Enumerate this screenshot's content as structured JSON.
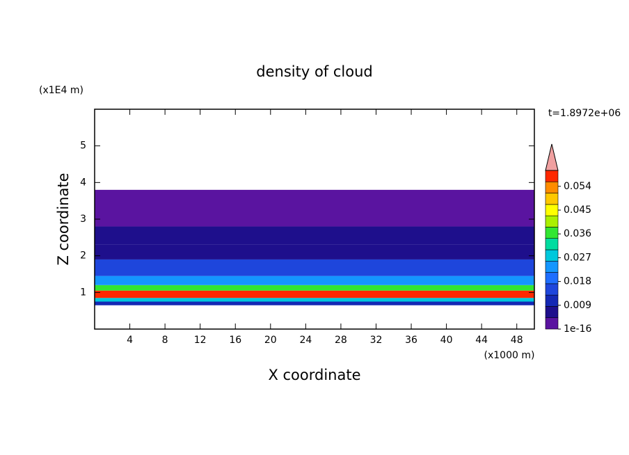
{
  "chart_data": {
    "type": "contour",
    "title": "density of cloud",
    "x_label": "X coordinate",
    "y_label": "Z coordinate",
    "x_unit": "(x1000 m)",
    "y_unit": "(x1E4 m)",
    "time_label": "t=1.8972e+06",
    "xlim": [
      0,
      50
    ],
    "xticks": [
      4,
      8,
      12,
      16,
      20,
      24,
      28,
      32,
      36,
      40,
      44,
      48
    ],
    "ylim": [
      0,
      6
    ],
    "yticks": [
      1,
      2,
      3,
      4,
      5
    ],
    "field": {
      "z": [
        0.65,
        0.75,
        0.85,
        1.05,
        1.2,
        1.45,
        1.9,
        2.3,
        2.8,
        3.8
      ],
      "values": [
        0.01,
        0.03,
        0.058,
        0.035,
        0.025,
        0.015,
        0.008,
        0.005,
        0.001
      ]
    },
    "clim": [
      1e-16,
      0.06
    ],
    "cticks": [
      1e-16,
      0.009,
      0.018,
      0.027,
      0.036,
      0.045,
      0.054
    ],
    "colors": [
      "#5a14a0",
      "#1e0f8c",
      "#1428b4",
      "#1e46dc",
      "#1e6eff",
      "#1496ff",
      "#00c8dc",
      "#00dca0",
      "#32e632",
      "#aaf000",
      "#ffff00",
      "#ffc800",
      "#ff8c00",
      "#ff2800"
    ],
    "extend_color": "#f0a0a0"
  }
}
